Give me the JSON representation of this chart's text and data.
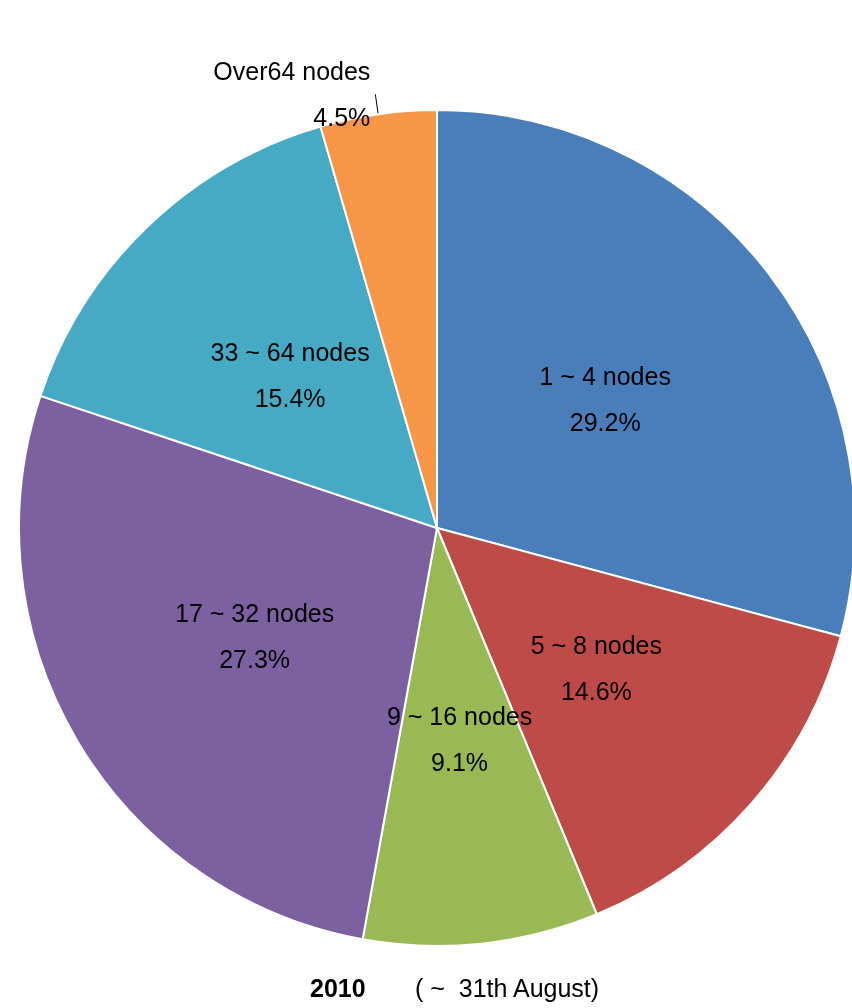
{
  "chart_data": {
    "type": "pie",
    "title": "2010",
    "subtitle": "( ~  31th August)",
    "categories": [
      "1 ~ 4 nodes",
      "5 ~ 8 nodes",
      "9 ~ 16 nodes",
      "17 ~ 32 nodes",
      "33 ~ 64 nodes",
      "Over64 nodes"
    ],
    "values": [
      29.2,
      14.6,
      9.1,
      27.3,
      15.4,
      4.5
    ],
    "value_labels": [
      "29.2%",
      "14.6%",
      "9.1%",
      "27.3%",
      "15.4%",
      "4.5%"
    ],
    "colors": [
      "#4a7ebb",
      "#be4b48",
      "#98b954",
      "#7d60a0",
      "#46aac5",
      "#f79646"
    ],
    "legend": false
  }
}
